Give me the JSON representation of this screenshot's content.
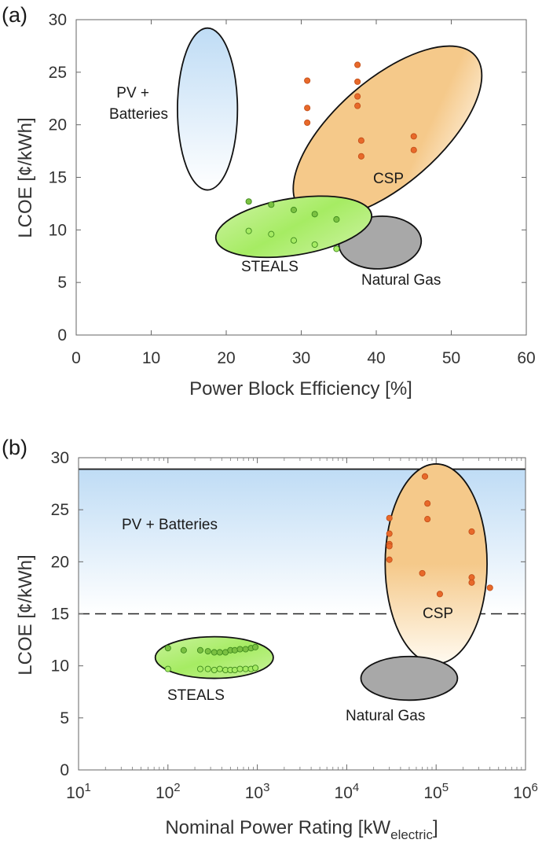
{
  "chart_data": [
    {
      "type": "scatter",
      "panel_label": "(a)",
      "xlabel": "Power Block Efficiency [%]",
      "ylabel": "LCOE [¢/kWh]",
      "xlim": [
        0,
        60
      ],
      "ylim": [
        0,
        30
      ],
      "xticks": [
        "0",
        "10",
        "20",
        "30",
        "40",
        "50",
        "60"
      ],
      "yticks": [
        "0",
        "5",
        "10",
        "15",
        "20",
        "25",
        "30"
      ],
      "grid": false,
      "regions": [
        {
          "label": "PV +\nBatteries",
          "label_lines": [
            "PV +",
            "Batteries"
          ],
          "cx": 17.5,
          "cy": 21.5,
          "rx": 4.0,
          "ry": 7.7,
          "angle": 0,
          "color": "#bfdcf5"
        },
        {
          "label": "CSP",
          "cx": 41.5,
          "cy": 19.3,
          "rx": 15.5,
          "ry": 5.0,
          "angle": -41,
          "color": "#f5c98a"
        },
        {
          "label": "Natural Gas",
          "cx": 40.5,
          "cy": 8.8,
          "rx": 5.5,
          "ry": 2.5,
          "angle": -3,
          "color": "#a8a8a8"
        },
        {
          "label": "STEALS",
          "cx": 29.0,
          "cy": 10.3,
          "rx": 10.5,
          "ry": 2.7,
          "angle": -9,
          "color": "#a6ec63"
        }
      ],
      "series": [
        {
          "name": "CSP",
          "color": "#e8692a",
          "points": [
            [
              30.8,
              24.2
            ],
            [
              30.8,
              21.6
            ],
            [
              30.8,
              20.2
            ],
            [
              37.5,
              25.7
            ],
            [
              37.5,
              24.1
            ],
            [
              37.5,
              22.7
            ],
            [
              37.5,
              21.8
            ],
            [
              38.0,
              18.5
            ],
            [
              38.0,
              17.0
            ],
            [
              45.0,
              18.9
            ],
            [
              45.0,
              17.6
            ]
          ]
        },
        {
          "name": "STEALS",
          "color": "#7bc142",
          "points": [
            [
              23.0,
              12.7
            ],
            [
              26.0,
              12.4
            ],
            [
              29.0,
              11.9
            ],
            [
              31.8,
              11.5
            ],
            [
              34.7,
              11.0
            ]
          ]
        },
        {
          "name": "STEALS",
          "color": "#a6ec63",
          "points": [
            [
              23.0,
              9.9
            ],
            [
              26.0,
              9.6
            ],
            [
              29.0,
              9.0
            ],
            [
              31.8,
              8.6
            ],
            [
              34.7,
              8.2
            ]
          ]
        }
      ]
    },
    {
      "type": "scatter",
      "panel_label": "(b)",
      "xlabel": "Nominal Power Rating [kW",
      "xlabel_sub": "electric",
      "xlabel_end": "]",
      "ylabel": "LCOE [¢/kWh]",
      "xscale": "log",
      "xlim": [
        10,
        1000000
      ],
      "ylim": [
        0,
        30
      ],
      "xtick_base": "10",
      "xtick_exponents": [
        "1",
        "2",
        "3",
        "4",
        "5",
        "6"
      ],
      "yticks": [
        "0",
        "5",
        "10",
        "15",
        "20",
        "25",
        "30"
      ],
      "grid": false,
      "pv_band": {
        "label": "PV + Batteries",
        "y_top": 28.9,
        "y_dashed": 15.0,
        "color": "#bfdcf5"
      },
      "regions": [
        {
          "label": "CSP",
          "cx": 100000,
          "cy": 19.8,
          "log_rx": 0.57,
          "ry": 9.6,
          "color": "#f5c98a"
        },
        {
          "label": "Natural Gas",
          "cx": 50000,
          "cy": 8.8,
          "log_rx": 0.54,
          "ry": 2.1,
          "color": "#a8a8a8"
        },
        {
          "label": "STEALS",
          "cx": 330,
          "cy": 10.8,
          "log_rx": 0.66,
          "ry": 2.0,
          "color": "#a6ec63"
        }
      ],
      "series": [
        {
          "name": "CSP",
          "color": "#e8692a",
          "points": [
            [
              30000,
              24.2
            ],
            [
              30000,
              22.7
            ],
            [
              30000,
              21.7
            ],
            [
              30000,
              21.5
            ],
            [
              30000,
              20.2
            ],
            [
              75000,
              28.2
            ],
            [
              80000,
              25.6
            ],
            [
              80000,
              24.1
            ],
            [
              70000,
              18.9
            ],
            [
              110000,
              16.9
            ],
            [
              250000,
              22.9
            ],
            [
              250000,
              18.5
            ],
            [
              250000,
              18.0
            ],
            [
              400000,
              17.5
            ]
          ]
        },
        {
          "name": "STEALS",
          "color": "#7bc142",
          "points": [
            [
              100,
              11.7
            ],
            [
              150,
              11.5
            ],
            [
              230,
              11.5
            ],
            [
              280,
              11.4
            ],
            [
              330,
              11.3
            ],
            [
              380,
              11.3
            ],
            [
              440,
              11.3
            ],
            [
              500,
              11.5
            ],
            [
              560,
              11.5
            ],
            [
              640,
              11.6
            ],
            [
              740,
              11.6
            ],
            [
              850,
              11.7
            ],
            [
              950,
              11.8
            ]
          ]
        },
        {
          "name": "STEALS",
          "color": "#a6ec63",
          "points": [
            [
              100,
              9.7
            ],
            [
              230,
              9.7
            ],
            [
              280,
              9.7
            ],
            [
              330,
              9.6
            ],
            [
              380,
              9.7
            ],
            [
              440,
              9.6
            ],
            [
              500,
              9.6
            ],
            [
              560,
              9.6
            ],
            [
              640,
              9.7
            ],
            [
              740,
              9.7
            ],
            [
              850,
              9.7
            ],
            [
              950,
              9.8
            ]
          ]
        }
      ]
    }
  ]
}
